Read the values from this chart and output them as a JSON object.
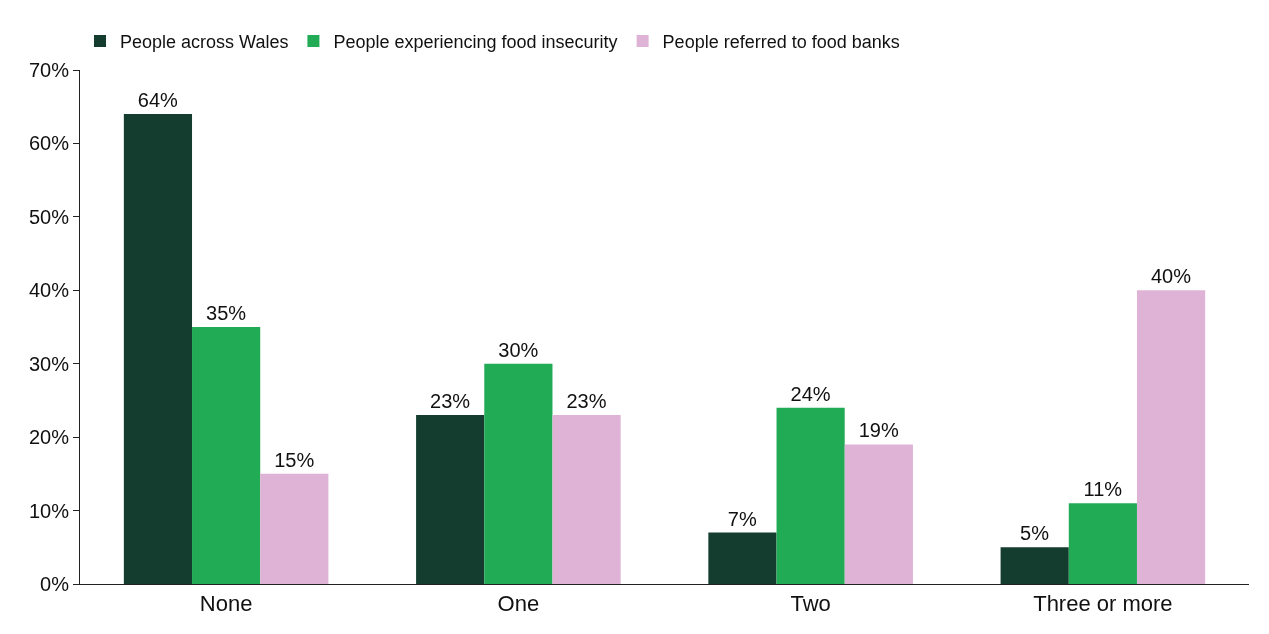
{
  "chart_data": {
    "type": "bar",
    "categories": [
      "None",
      "One",
      "Two",
      "Three or more"
    ],
    "series": [
      {
        "name": "People across Wales",
        "color": "#143d30",
        "values": [
          64,
          23,
          7,
          5
        ],
        "value_labels": [
          "64%",
          "23%",
          "7%",
          "5%"
        ]
      },
      {
        "name": "People experiencing food insecurity",
        "color": "#22ab55",
        "values": [
          35,
          30,
          24,
          11
        ],
        "value_labels": [
          "35%",
          "30%",
          "24%",
          "11%"
        ]
      },
      {
        "name": "People referred to food banks",
        "color": "#dfb3d5",
        "values": [
          15,
          23,
          19,
          40
        ],
        "value_labels": [
          "15%",
          "23%",
          "19%",
          "40%"
        ]
      }
    ],
    "ylim": [
      0,
      70
    ],
    "yticks": [
      {
        "value": 0,
        "label": "0%"
      },
      {
        "value": 10,
        "label": "10%"
      },
      {
        "value": 20,
        "label": "20%"
      },
      {
        "value": 30,
        "label": "30%"
      },
      {
        "value": 40,
        "label": "40%"
      },
      {
        "value": 50,
        "label": "50%"
      },
      {
        "value": 60,
        "label": "60%"
      },
      {
        "value": 70,
        "label": "70%"
      }
    ],
    "grid": false,
    "legend": "top left"
  }
}
